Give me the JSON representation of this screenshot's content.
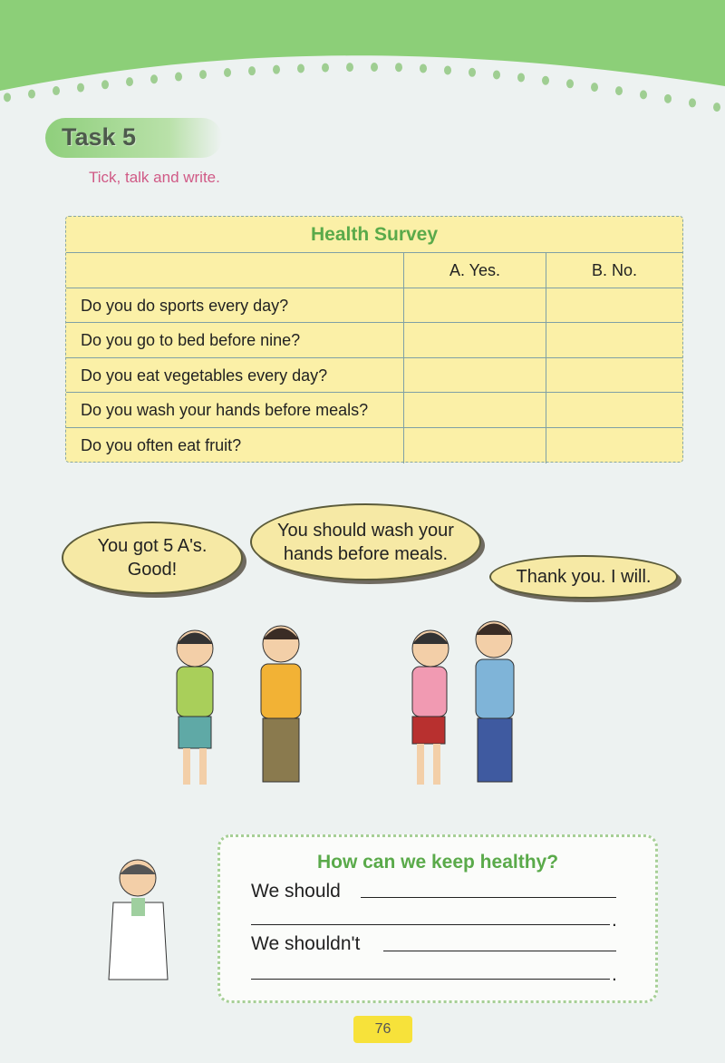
{
  "task": {
    "label": "Task 5",
    "instruction": "Tick, talk and write."
  },
  "survey": {
    "title": "Health Survey",
    "columns": [
      "",
      "A. Yes.",
      "B. No."
    ],
    "rows": [
      {
        "question": "Do you do sports every day?",
        "yes": "",
        "no": ""
      },
      {
        "question": "Do you go to bed before nine?",
        "yes": "",
        "no": ""
      },
      {
        "question": "Do you eat vegetables every day?",
        "yes": "",
        "no": ""
      },
      {
        "question": "Do you wash your hands before meals?",
        "yes": "",
        "no": ""
      },
      {
        "question": "Do you often eat fruit?",
        "yes": "",
        "no": ""
      }
    ]
  },
  "dialogue": [
    {
      "line1": "You got 5 A's.",
      "line2": "Good!"
    },
    {
      "line1": "You should wash your",
      "line2": "hands before meals."
    },
    {
      "line1": "Thank you. I will."
    }
  ],
  "keep_healthy": {
    "title": "How can we keep healthy?",
    "should": "We should",
    "shouldnt": "We shouldn't",
    "period": "."
  },
  "page_number": "76",
  "colors": {
    "header_green": "#8ccf78",
    "title_green": "#5aaa4a",
    "table_yellow": "#fbf0a7",
    "instruction_pink": "#d05a86"
  }
}
